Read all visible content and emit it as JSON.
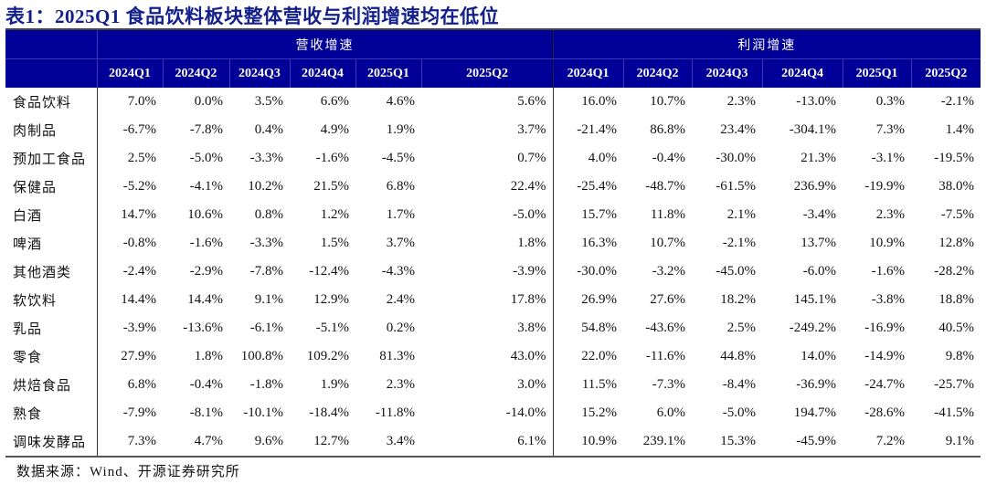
{
  "title": "表1：2025Q1 食品饮料板块整体营收与利润增速均在低位",
  "colors": {
    "header_bg": "#000099",
    "title": "#14208a"
  },
  "groups": [
    "营收增速",
    "利润增速"
  ],
  "quarters": [
    "2024Q1",
    "2024Q2",
    "2024Q3",
    "2024Q4",
    "2025Q1",
    "2025Q2"
  ],
  "rows": [
    {
      "label": "食品饮料",
      "revenue": [
        "7.0%",
        "0.0%",
        "3.5%",
        "6.6%",
        "4.6%",
        "5.6%"
      ],
      "profit": [
        "16.0%",
        "10.7%",
        "2.3%",
        "-13.0%",
        "0.3%",
        "-2.1%"
      ]
    },
    {
      "label": "肉制品",
      "revenue": [
        "-6.7%",
        "-7.8%",
        "0.4%",
        "4.9%",
        "1.9%",
        "3.7%"
      ],
      "profit": [
        "-21.4%",
        "86.8%",
        "23.4%",
        "-304.1%",
        "7.3%",
        "1.4%"
      ]
    },
    {
      "label": "预加工食品",
      "revenue": [
        "2.5%",
        "-5.0%",
        "-3.3%",
        "-1.6%",
        "-4.5%",
        "0.7%"
      ],
      "profit": [
        "4.0%",
        "-0.4%",
        "-30.0%",
        "21.3%",
        "-3.1%",
        "-19.5%"
      ]
    },
    {
      "label": "保健品",
      "revenue": [
        "-5.2%",
        "-4.1%",
        "10.2%",
        "21.5%",
        "6.8%",
        "22.4%"
      ],
      "profit": [
        "-25.4%",
        "-48.7%",
        "-61.5%",
        "236.9%",
        "-19.9%",
        "38.0%"
      ]
    },
    {
      "label": "白酒",
      "revenue": [
        "14.7%",
        "10.6%",
        "0.8%",
        "1.2%",
        "1.7%",
        "-5.0%"
      ],
      "profit": [
        "15.7%",
        "11.8%",
        "2.1%",
        "-3.4%",
        "2.3%",
        "-7.5%"
      ]
    },
    {
      "label": "啤酒",
      "revenue": [
        "-0.8%",
        "-1.6%",
        "-3.3%",
        "1.5%",
        "3.7%",
        "1.8%"
      ],
      "profit": [
        "16.3%",
        "10.7%",
        "-2.1%",
        "13.7%",
        "10.9%",
        "12.8%"
      ]
    },
    {
      "label": "其他酒类",
      "revenue": [
        "-2.4%",
        "-2.9%",
        "-7.8%",
        "-12.4%",
        "-4.3%",
        "-3.9%"
      ],
      "profit": [
        "-30.0%",
        "-3.2%",
        "-45.0%",
        "-6.0%",
        "-1.6%",
        "-28.2%"
      ]
    },
    {
      "label": "软饮料",
      "revenue": [
        "14.4%",
        "14.4%",
        "9.1%",
        "12.9%",
        "2.4%",
        "17.8%"
      ],
      "profit": [
        "26.9%",
        "27.6%",
        "18.2%",
        "145.1%",
        "-3.8%",
        "18.8%"
      ]
    },
    {
      "label": "乳品",
      "revenue": [
        "-3.9%",
        "-13.6%",
        "-6.1%",
        "-5.1%",
        "0.2%",
        "3.8%"
      ],
      "profit": [
        "54.8%",
        "-43.6%",
        "2.5%",
        "-249.2%",
        "-16.9%",
        "40.5%"
      ]
    },
    {
      "label": "零食",
      "revenue": [
        "27.9%",
        "1.8%",
        "100.8%",
        "109.2%",
        "81.3%",
        "43.0%"
      ],
      "profit": [
        "22.0%",
        "-11.6%",
        "44.8%",
        "14.0%",
        "-14.9%",
        "9.8%"
      ]
    },
    {
      "label": "烘焙食品",
      "revenue": [
        "6.8%",
        "-0.4%",
        "-1.8%",
        "1.9%",
        "2.3%",
        "3.0%"
      ],
      "profit": [
        "11.5%",
        "-7.3%",
        "-8.4%",
        "-36.9%",
        "-24.7%",
        "-25.7%"
      ]
    },
    {
      "label": "熟食",
      "revenue": [
        "-7.9%",
        "-8.1%",
        "-10.1%",
        "-18.4%",
        "-11.8%",
        "-14.0%"
      ],
      "profit": [
        "15.2%",
        "6.0%",
        "-5.0%",
        "194.7%",
        "-28.6%",
        "-41.5%"
      ]
    },
    {
      "label": "调味发酵品",
      "revenue": [
        "7.3%",
        "4.7%",
        "9.6%",
        "12.7%",
        "3.4%",
        "6.1%"
      ],
      "profit": [
        "10.9%",
        "239.1%",
        "15.3%",
        "-45.9%",
        "7.2%",
        "9.1%"
      ]
    }
  ],
  "source": "数据来源：Wind、开源证券研究所"
}
